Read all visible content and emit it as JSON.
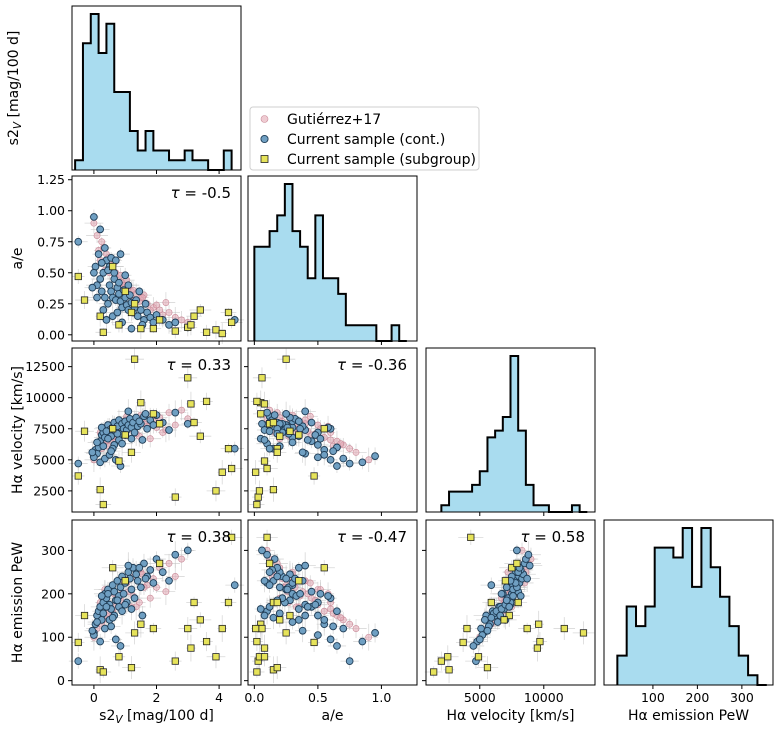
{
  "chart_data": {
    "type": "corner",
    "variables": [
      {
        "key": "s2v",
        "label": "s2",
        "label_sub": "V",
        "label_tail": " [mag/100 d]",
        "range": [
          -0.7,
          4.7
        ],
        "ticks": [
          0,
          2,
          4
        ]
      },
      {
        "key": "ae",
        "label": "a/e",
        "range": [
          -0.05,
          1.28
        ],
        "ticks": [
          0.0,
          0.5,
          1.0
        ],
        "yticks": [
          0.0,
          0.25,
          0.5,
          0.75,
          1.0,
          1.25
        ]
      },
      {
        "key": "vel",
        "label": "Hα velocity [km/s]",
        "range": [
          800,
          14000
        ],
        "ticks": [
          5000,
          10000
        ],
        "yticks": [
          2500,
          5000,
          7500,
          10000,
          12500
        ]
      },
      {
        "key": "pew",
        "label": "Hα emission PeW",
        "range": [
          -10,
          370
        ],
        "ticks": [
          100,
          200,
          300
        ],
        "yticks": [
          0,
          100,
          200,
          300
        ]
      }
    ],
    "histograms": {
      "s2v": {
        "edges": [
          -0.6,
          -0.35,
          -0.1,
          0.15,
          0.4,
          0.65,
          0.9,
          1.15,
          1.4,
          1.65,
          1.9,
          2.15,
          2.4,
          2.65,
          2.9,
          3.15,
          3.4,
          3.65,
          3.9,
          4.15,
          4.4
        ],
        "counts": [
          1,
          13,
          16,
          12,
          15,
          8,
          8,
          4,
          2,
          4,
          2,
          2,
          1,
          1,
          2,
          1,
          1,
          0,
          0,
          2
        ]
      },
      "ae": {
        "edges": [
          0.0,
          0.06,
          0.12,
          0.18,
          0.24,
          0.3,
          0.36,
          0.42,
          0.48,
          0.54,
          0.6,
          0.66,
          0.72,
          0.78,
          0.84,
          0.9,
          0.96,
          1.02,
          1.08,
          1.14,
          1.2
        ],
        "counts": [
          6,
          6,
          7,
          8,
          10,
          7,
          6,
          4,
          8,
          4,
          4,
          3,
          1,
          1,
          1,
          1,
          0,
          0,
          1,
          0
        ]
      },
      "vel": {
        "edges": [
          2000,
          2600,
          3200,
          3800,
          4400,
          5000,
          5600,
          6200,
          6800,
          7400,
          8000,
          8600,
          9200,
          9800,
          10400,
          11000,
          11600,
          12200,
          12800,
          13400
        ],
        "counts": [
          1,
          3,
          3,
          3,
          4,
          6,
          11,
          12,
          14,
          23,
          12,
          4,
          1,
          1,
          0,
          0,
          0,
          1,
          0
        ]
      },
      "pew": {
        "edges": [
          20,
          41,
          62,
          83,
          104,
          125,
          146,
          167,
          188,
          209,
          230,
          251,
          272,
          293,
          314,
          335,
          356
        ],
        "counts": [
          3,
          8,
          6,
          8,
          14,
          14,
          13,
          16,
          10,
          16,
          12,
          9,
          6,
          3,
          1,
          0
        ]
      }
    },
    "tau": {
      "ae|s2v": "-0.5",
      "vel|s2v": "0.33",
      "vel|ae": "-0.36",
      "pew|s2v": "0.38",
      "pew|ae": "-0.47",
      "pew|vel": "0.58"
    },
    "tau_symbol": "τ",
    "legend": {
      "placement": "upper-center",
      "entries": [
        {
          "label": "Gutiérrez+17",
          "marker": "circle",
          "color": "#e4a8b4"
        },
        {
          "label": "Current sample (cont.)",
          "marker": "circle",
          "color": "#6f9fc2"
        },
        {
          "label": "Current sample (subgroup)",
          "marker": "square",
          "color": "#e6e35a"
        }
      ]
    },
    "series": [
      {
        "name": "Gutiérrez+17",
        "points": [
          [
            0.2,
            0.6,
            7200,
            180
          ],
          [
            0.5,
            0.5,
            7800,
            210
          ],
          [
            0.8,
            0.45,
            7000,
            190
          ],
          [
            1.0,
            0.4,
            8200,
            230
          ],
          [
            1.2,
            0.35,
            7500,
            170
          ],
          [
            1.5,
            0.3,
            8600,
            250
          ],
          [
            0.3,
            0.7,
            6200,
            140
          ],
          [
            0.6,
            0.55,
            6800,
            160
          ],
          [
            0.9,
            0.42,
            7300,
            200
          ],
          [
            1.3,
            0.28,
            8000,
            240
          ],
          [
            1.7,
            0.25,
            7700,
            220
          ],
          [
            2.1,
            0.2,
            8400,
            260
          ],
          [
            0.1,
            0.8,
            5600,
            120
          ],
          [
            0.4,
            0.65,
            6500,
            150
          ],
          [
            0.7,
            0.5,
            6900,
            175
          ],
          [
            1.1,
            0.38,
            7600,
            205
          ],
          [
            1.6,
            0.32,
            7900,
            215
          ],
          [
            2.4,
            0.18,
            8800,
            270
          ],
          [
            2.8,
            0.12,
            9000,
            280
          ],
          [
            0.0,
            0.9,
            5000,
            100
          ],
          [
            0.25,
            0.75,
            5900,
            130
          ],
          [
            0.55,
            0.6,
            6600,
            165
          ],
          [
            0.85,
            0.48,
            7100,
            185
          ],
          [
            1.25,
            0.36,
            7400,
            195
          ],
          [
            1.9,
            0.22,
            8100,
            235
          ],
          [
            2.2,
            0.16,
            7200,
            250
          ],
          [
            3.0,
            0.1,
            8300,
            300
          ],
          [
            0.35,
            0.52,
            7500,
            210
          ],
          [
            1.45,
            0.27,
            6900,
            180
          ],
          [
            2.6,
            0.14,
            7800,
            240
          ],
          [
            0.15,
            0.68,
            6300,
            145
          ],
          [
            1.05,
            0.44,
            8500,
            225
          ],
          [
            1.8,
            0.2,
            6700,
            190
          ],
          [
            0.65,
            0.58,
            7700,
            200
          ],
          [
            1.35,
            0.33,
            7100,
            170
          ],
          [
            2.0,
            0.24,
            7600,
            215
          ],
          [
            0.45,
            0.62,
            6100,
            155
          ],
          [
            0.95,
            0.4,
            7900,
            230
          ],
          [
            1.55,
            0.3,
            8300,
            245
          ],
          [
            2.3,
            0.26,
            7400,
            205
          ]
        ]
      },
      {
        "name": "Current sample (cont.)",
        "points": [
          [
            -0.5,
            0.75,
            4700,
            45
          ],
          [
            0.0,
            0.95,
            5300,
            110
          ],
          [
            0.05,
            0.55,
            5800,
            130
          ],
          [
            0.1,
            0.4,
            5500,
            150
          ],
          [
            0.15,
            0.65,
            6000,
            160
          ],
          [
            0.2,
            0.45,
            6500,
            170
          ],
          [
            0.25,
            0.35,
            7000,
            140
          ],
          [
            0.3,
            0.5,
            7200,
            180
          ],
          [
            0.35,
            0.3,
            6800,
            200
          ],
          [
            0.4,
            0.6,
            7500,
            190
          ],
          [
            0.45,
            0.25,
            7800,
            210
          ],
          [
            0.5,
            0.4,
            7400,
            175
          ],
          [
            0.55,
            0.35,
            6900,
            165
          ],
          [
            0.6,
            0.3,
            7600,
            220
          ],
          [
            0.65,
            0.45,
            8000,
            205
          ],
          [
            0.7,
            0.28,
            7300,
            185
          ],
          [
            0.75,
            0.38,
            7700,
            230
          ],
          [
            0.8,
            0.33,
            8200,
            195
          ],
          [
            0.85,
            0.27,
            7100,
            215
          ],
          [
            0.9,
            0.22,
            7900,
            240
          ],
          [
            0.95,
            0.36,
            7500,
            200
          ],
          [
            1.0,
            0.3,
            8100,
            225
          ],
          [
            1.05,
            0.24,
            7400,
            180
          ],
          [
            1.1,
            0.2,
            7800,
            250
          ],
          [
            1.15,
            0.32,
            8300,
            235
          ],
          [
            1.2,
            0.26,
            7600,
            210
          ],
          [
            1.25,
            0.18,
            8000,
            260
          ],
          [
            1.3,
            0.22,
            7200,
            190
          ],
          [
            1.35,
            0.28,
            8400,
            245
          ],
          [
            1.4,
            0.15,
            7700,
            230
          ],
          [
            1.5,
            0.2,
            7900,
            215
          ],
          [
            1.6,
            0.12,
            8500,
            270
          ],
          [
            1.7,
            0.18,
            7500,
            240
          ],
          [
            1.8,
            0.14,
            8200,
            255
          ],
          [
            1.9,
            0.1,
            7800,
            225
          ],
          [
            2.0,
            0.16,
            8600,
            280
          ],
          [
            2.2,
            0.12,
            8000,
            250
          ],
          [
            2.4,
            0.08,
            7400,
            230
          ],
          [
            2.6,
            0.1,
            8800,
            290
          ],
          [
            3.0,
            0.06,
            7900,
            300
          ],
          [
            0.2,
            0.85,
            4800,
            90
          ],
          [
            0.35,
            0.7,
            5100,
            120
          ],
          [
            0.5,
            0.55,
            5400,
            140
          ],
          [
            0.65,
            0.5,
            6200,
            150
          ],
          [
            0.8,
            0.42,
            6600,
            170
          ],
          [
            0.1,
            0.3,
            6400,
            135
          ],
          [
            0.3,
            0.2,
            6100,
            155
          ],
          [
            0.6,
            0.15,
            5900,
            145
          ],
          [
            0.9,
            0.1,
            6300,
            160
          ],
          [
            1.2,
            0.05,
            6700,
            165
          ],
          [
            4.5,
            0.12,
            5900,
            220
          ],
          [
            1.0,
            0.48,
            7000,
            175
          ],
          [
            0.45,
            0.52,
            6700,
            200
          ],
          [
            0.75,
            0.18,
            7100,
            185
          ],
          [
            1.45,
            0.35,
            8100,
            260
          ],
          [
            0.55,
            0.62,
            5700,
            125
          ],
          [
            0.0,
            0.5,
            5200,
            105
          ],
          [
            -0.05,
            0.38,
            5600,
            115
          ],
          [
            1.65,
            0.25,
            8700,
            235
          ],
          [
            0.25,
            0.58,
            7600,
            195
          ],
          [
            0.85,
            0.65,
            4500,
            80
          ],
          [
            1.55,
            0.08,
            6600,
            150
          ],
          [
            0.4,
            0.12,
            7300,
            170
          ],
          [
            1.1,
            0.4,
            8900,
            265
          ],
          [
            0.7,
            0.6,
            5000,
            95
          ]
        ]
      },
      {
        "name": "Current sample (subgroup)",
        "points": [
          [
            -0.5,
            0.47,
            3700,
            88
          ],
          [
            -0.3,
            0.28,
            7300,
            150
          ],
          [
            0.2,
            0.15,
            2600,
            25
          ],
          [
            0.3,
            0.02,
            1400,
            20
          ],
          [
            0.6,
            0.55,
            7500,
            260
          ],
          [
            1.0,
            0.35,
            7000,
            230
          ],
          [
            1.3,
            0.25,
            13100,
            110
          ],
          [
            1.5,
            0.05,
            9600,
            130
          ],
          [
            1.9,
            0.05,
            8700,
            120
          ],
          [
            2.1,
            0.12,
            7900,
            270
          ],
          [
            2.6,
            0.03,
            2000,
            45
          ],
          [
            3.0,
            0.06,
            11600,
            120
          ],
          [
            3.1,
            0.08,
            9500,
            75
          ],
          [
            3.2,
            0.15,
            8000,
            180
          ],
          [
            3.4,
            0.2,
            6900,
            140
          ],
          [
            3.6,
            0.02,
            9700,
            90
          ],
          [
            3.9,
            0.04,
            2500,
            55
          ],
          [
            4.1,
            0.01,
            4000,
            120
          ],
          [
            4.3,
            0.18,
            5900,
            180
          ],
          [
            4.4,
            0.1,
            4300,
            330
          ],
          [
            0.8,
            0.08,
            4900,
            55
          ],
          [
            1.2,
            0.18,
            5600,
            30
          ]
        ]
      }
    ]
  }
}
